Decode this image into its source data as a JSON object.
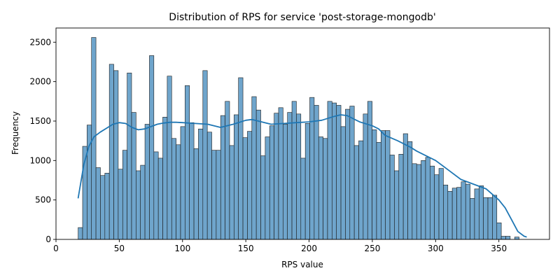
{
  "chart_data": {
    "type": "bar",
    "title": "Distribution of RPS for service 'post-storage-mongodb'",
    "xlabel": "RPS value",
    "ylabel": "Frequency",
    "xlim": [
      0,
      390
    ],
    "ylim": [
      0,
      2680
    ],
    "xticks": [
      0,
      50,
      100,
      150,
      200,
      250,
      300,
      350
    ],
    "yticks": [
      0,
      500,
      1000,
      1500,
      2000,
      2500
    ],
    "grid": false,
    "bar_color": "#6fa5cc",
    "line_color": "#1f77b4",
    "bin_start": 17.5,
    "bin_width": 3.52,
    "values": [
      150,
      1180,
      1450,
      2560,
      910,
      810,
      840,
      2220,
      2140,
      890,
      1130,
      2110,
      1610,
      870,
      940,
      1460,
      2330,
      1110,
      1030,
      1550,
      2070,
      1280,
      1200,
      1430,
      1950,
      1480,
      1150,
      1400,
      2140,
      1360,
      1130,
      1130,
      1570,
      1750,
      1190,
      1580,
      2050,
      1290,
      1370,
      1810,
      1640,
      1060,
      1300,
      1440,
      1600,
      1670,
      1460,
      1610,
      1750,
      1590,
      1030,
      1470,
      1800,
      1700,
      1300,
      1280,
      1750,
      1730,
      1700,
      1430,
      1650,
      1690,
      1190,
      1250,
      1590,
      1750,
      1390,
      1230,
      1380,
      1380,
      1070,
      870,
      1080,
      1340,
      1240,
      960,
      950,
      1000,
      1040,
      930,
      820,
      900,
      690,
      610,
      650,
      660,
      730,
      700,
      520,
      640,
      680,
      530,
      530,
      560,
      210,
      40,
      40,
      0,
      30
    ],
    "kde": {
      "x": [
        17.5,
        22,
        26,
        30,
        35,
        40,
        45,
        50,
        55,
        60,
        65,
        70,
        75,
        80,
        85,
        90,
        95,
        100,
        110,
        120,
        130,
        140,
        150,
        155,
        160,
        170,
        180,
        190,
        200,
        210,
        220,
        225,
        230,
        240,
        250,
        255,
        260,
        270,
        280,
        285,
        290,
        300,
        310,
        320,
        330,
        340,
        350,
        355,
        360,
        365,
        370,
        372
      ],
      "y": [
        520,
        950,
        1180,
        1300,
        1360,
        1410,
        1460,
        1480,
        1470,
        1420,
        1390,
        1400,
        1430,
        1460,
        1475,
        1485,
        1485,
        1480,
        1470,
        1460,
        1420,
        1460,
        1510,
        1520,
        1500,
        1460,
        1470,
        1480,
        1490,
        1510,
        1560,
        1580,
        1570,
        1490,
        1440,
        1400,
        1320,
        1250,
        1170,
        1120,
        1080,
        1000,
        880,
        760,
        700,
        640,
        500,
        400,
        250,
        100,
        40,
        30
      ]
    }
  }
}
